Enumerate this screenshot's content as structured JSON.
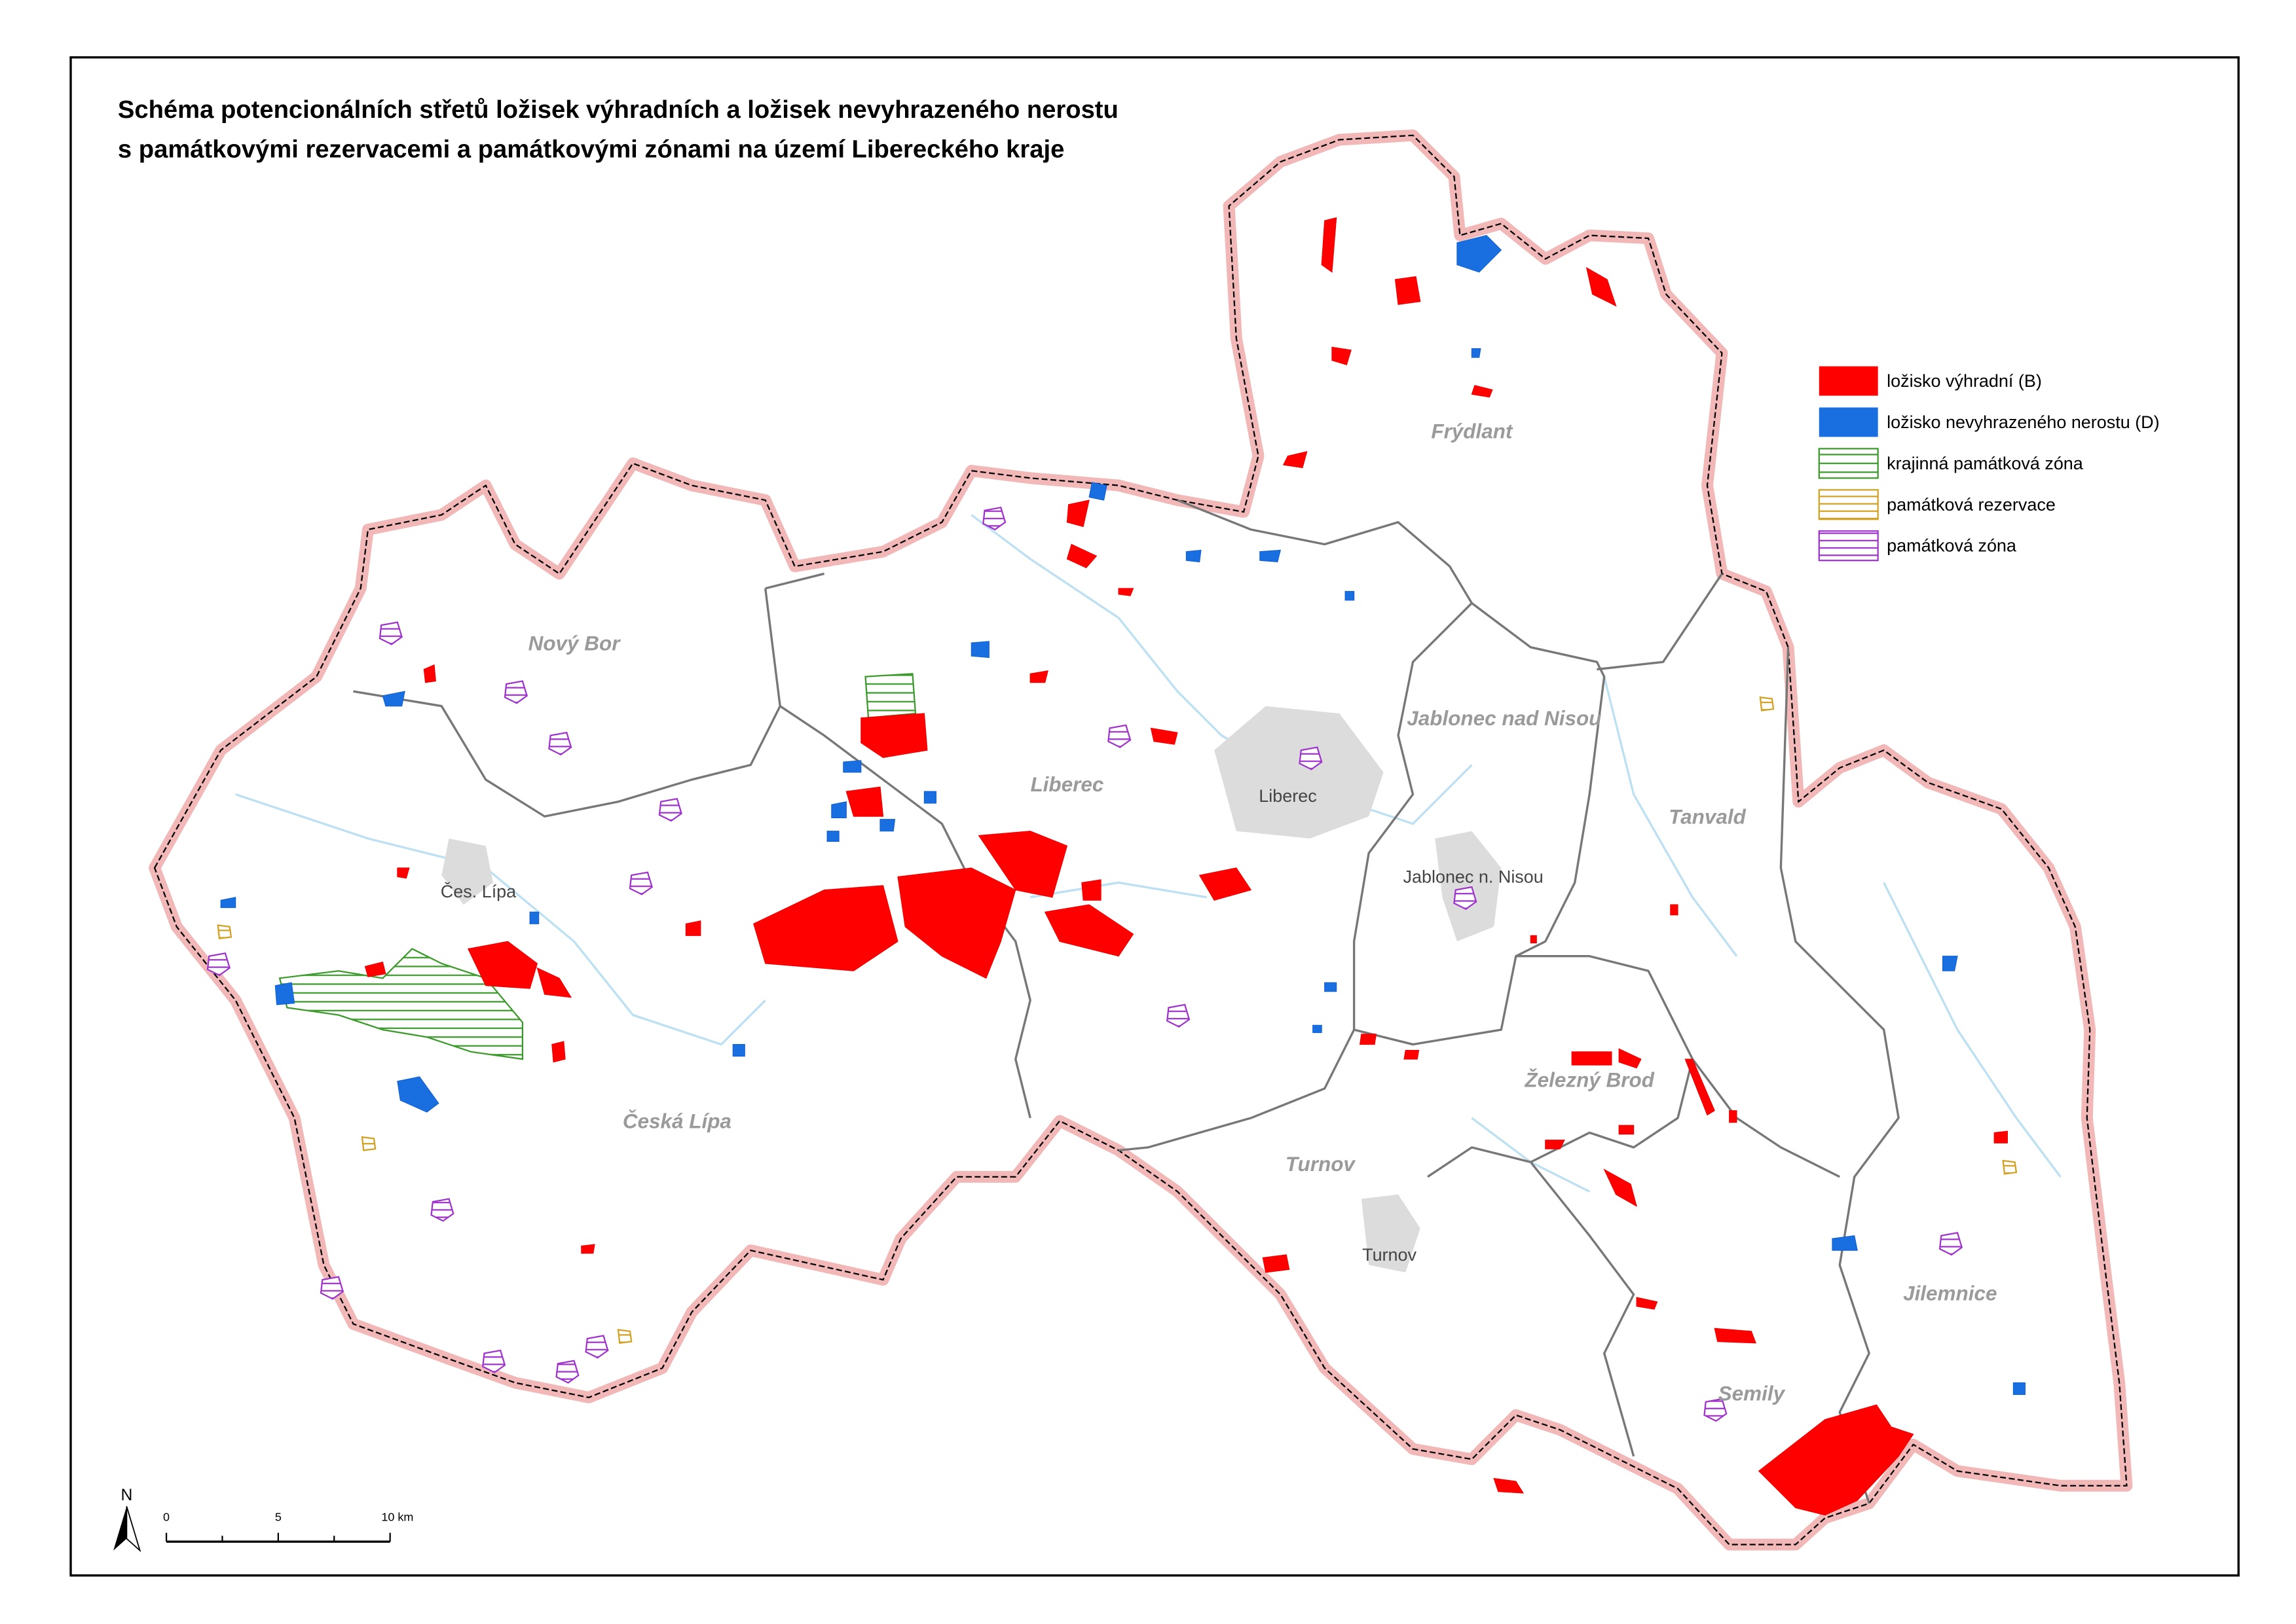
{
  "title": {
    "lines": [
      "Schéma potencionálních střetů ložisek výhradních a ložisek nevyhrazeného nerostu",
      "s památkovými rezervacemi a památkovými zónami na území Libereckého kraje"
    ]
  },
  "legend": {
    "items": [
      {
        "label": "ložisko výhradní (B)"
      },
      {
        "label": "ložisko nevyhrazeného nerostu (D)"
      },
      {
        "label": "krajinná památková zóna"
      },
      {
        "label": "památková rezervace"
      },
      {
        "label": "památková zóna"
      }
    ]
  },
  "districts": [
    "Frýdlant",
    "Nový Bor",
    "Liberec",
    "Jablonec nad Nisou",
    "Tanvald",
    "Česká Lípa",
    "Železný Brod",
    "Turnov",
    "Jilemnice",
    "Semily"
  ],
  "towns": [
    "Čes. Lípa",
    "Liberec",
    "Jablonec n. Nisou",
    "Turnov"
  ],
  "scale_bar": {
    "labels": [
      "0",
      "5",
      "10 km"
    ]
  },
  "north_arrow": "N"
}
